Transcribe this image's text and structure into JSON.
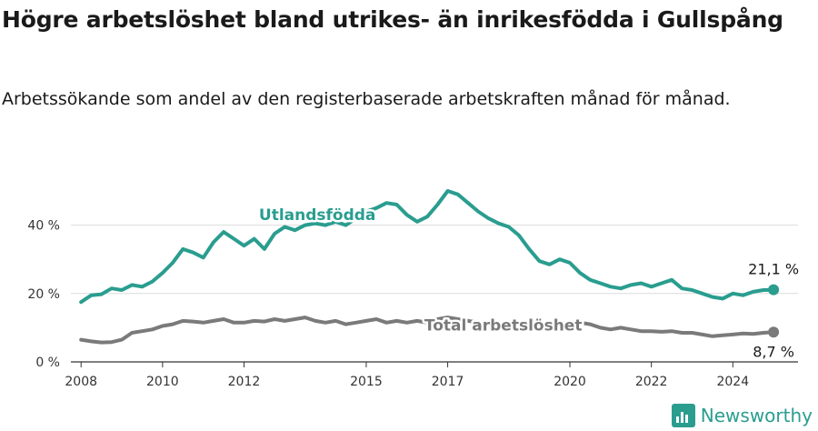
{
  "title": "Högre arbetslöshet bland utrikes- än inrikesfödda i Gullspång",
  "subtitle": "Arbetssökande som andel av den registerbaserade arbetskraften månad för månad.",
  "brand": {
    "name": "Newsworthy",
    "icon": "bar-chart-icon"
  },
  "chart_data": {
    "type": "line",
    "x_ticks": [
      2008,
      2010,
      2012,
      2015,
      2017,
      2020,
      2022,
      2024
    ],
    "y_ticks": [
      0,
      20,
      40
    ],
    "y_tick_labels": [
      "0 %",
      "20 %",
      "40 %"
    ],
    "xlim": [
      2007.75,
      2025.6
    ],
    "ylim": [
      0,
      50
    ],
    "grid": "horizontal",
    "colors": {
      "utlandsfodda": "#2a9d8f",
      "total": "#7a7a7a"
    },
    "series": [
      {
        "name": "Utlandsfödda",
        "color": "#2a9d8f",
        "end_label": "21,1 %",
        "points": [
          [
            2008.0,
            17.5
          ],
          [
            2008.25,
            19.5
          ],
          [
            2008.5,
            19.8
          ],
          [
            2008.75,
            21.5
          ],
          [
            2009.0,
            21.0
          ],
          [
            2009.25,
            22.5
          ],
          [
            2009.5,
            22.0
          ],
          [
            2009.75,
            23.5
          ],
          [
            2010.0,
            26.0
          ],
          [
            2010.25,
            29.0
          ],
          [
            2010.5,
            33.0
          ],
          [
            2010.75,
            32.0
          ],
          [
            2011.0,
            30.5
          ],
          [
            2011.25,
            35.0
          ],
          [
            2011.5,
            38.0
          ],
          [
            2011.75,
            36.0
          ],
          [
            2012.0,
            34.0
          ],
          [
            2012.25,
            36.0
          ],
          [
            2012.5,
            33.0
          ],
          [
            2012.75,
            37.5
          ],
          [
            2013.0,
            39.5
          ],
          [
            2013.25,
            38.5
          ],
          [
            2013.5,
            40.0
          ],
          [
            2013.75,
            40.5
          ],
          [
            2014.0,
            40.0
          ],
          [
            2014.25,
            41.0
          ],
          [
            2014.5,
            40.0
          ],
          [
            2014.75,
            42.0
          ],
          [
            2015.0,
            44.0
          ],
          [
            2015.25,
            45.0
          ],
          [
            2015.5,
            46.5
          ],
          [
            2015.75,
            46.0
          ],
          [
            2016.0,
            43.0
          ],
          [
            2016.25,
            41.0
          ],
          [
            2016.5,
            42.5
          ],
          [
            2016.75,
            46.0
          ],
          [
            2017.0,
            50.0
          ],
          [
            2017.25,
            49.0
          ],
          [
            2017.5,
            46.5
          ],
          [
            2017.75,
            44.0
          ],
          [
            2018.0,
            42.0
          ],
          [
            2018.25,
            40.5
          ],
          [
            2018.5,
            39.5
          ],
          [
            2018.75,
            37.0
          ],
          [
            2019.0,
            33.0
          ],
          [
            2019.25,
            29.5
          ],
          [
            2019.5,
            28.5
          ],
          [
            2019.75,
            30.0
          ],
          [
            2020.0,
            29.0
          ],
          [
            2020.25,
            26.0
          ],
          [
            2020.5,
            24.0
          ],
          [
            2020.75,
            23.0
          ],
          [
            2021.0,
            22.0
          ],
          [
            2021.25,
            21.5
          ],
          [
            2021.5,
            22.5
          ],
          [
            2021.75,
            23.0
          ],
          [
            2022.0,
            22.0
          ],
          [
            2022.25,
            23.0
          ],
          [
            2022.5,
            24.0
          ],
          [
            2022.75,
            21.5
          ],
          [
            2023.0,
            21.0
          ],
          [
            2023.25,
            20.0
          ],
          [
            2023.5,
            19.0
          ],
          [
            2023.75,
            18.5
          ],
          [
            2024.0,
            20.0
          ],
          [
            2024.25,
            19.5
          ],
          [
            2024.5,
            20.5
          ],
          [
            2024.75,
            21.0
          ],
          [
            2025.0,
            21.1
          ]
        ]
      },
      {
        "name": "Total arbetslöshet",
        "color": "#7a7a7a",
        "end_label": "8,7 %",
        "points": [
          [
            2008.0,
            6.5
          ],
          [
            2008.25,
            6.0
          ],
          [
            2008.5,
            5.7
          ],
          [
            2008.75,
            5.8
          ],
          [
            2009.0,
            6.5
          ],
          [
            2009.25,
            8.5
          ],
          [
            2009.5,
            9.0
          ],
          [
            2009.75,
            9.5
          ],
          [
            2010.0,
            10.5
          ],
          [
            2010.25,
            11.0
          ],
          [
            2010.5,
            12.0
          ],
          [
            2010.75,
            11.8
          ],
          [
            2011.0,
            11.5
          ],
          [
            2011.25,
            12.0
          ],
          [
            2011.5,
            12.5
          ],
          [
            2011.75,
            11.5
          ],
          [
            2012.0,
            11.5
          ],
          [
            2012.25,
            12.0
          ],
          [
            2012.5,
            11.8
          ],
          [
            2012.75,
            12.5
          ],
          [
            2013.0,
            12.0
          ],
          [
            2013.25,
            12.5
          ],
          [
            2013.5,
            13.0
          ],
          [
            2013.75,
            12.0
          ],
          [
            2014.0,
            11.5
          ],
          [
            2014.25,
            12.0
          ],
          [
            2014.5,
            11.0
          ],
          [
            2014.75,
            11.5
          ],
          [
            2015.0,
            12.0
          ],
          [
            2015.25,
            12.5
          ],
          [
            2015.5,
            11.5
          ],
          [
            2015.75,
            12.0
          ],
          [
            2016.0,
            11.5
          ],
          [
            2016.25,
            12.0
          ],
          [
            2016.5,
            11.5
          ],
          [
            2016.75,
            12.5
          ],
          [
            2017.0,
            13.0
          ],
          [
            2017.25,
            12.5
          ],
          [
            2017.5,
            12.0
          ],
          [
            2017.75,
            11.5
          ],
          [
            2018.0,
            11.0
          ],
          [
            2018.25,
            10.5
          ],
          [
            2018.5,
            10.5
          ],
          [
            2018.75,
            10.0
          ],
          [
            2019.0,
            10.0
          ],
          [
            2019.25,
            9.8
          ],
          [
            2019.5,
            10.0
          ],
          [
            2019.75,
            10.5
          ],
          [
            2020.0,
            11.0
          ],
          [
            2020.25,
            11.5
          ],
          [
            2020.5,
            11.0
          ],
          [
            2020.75,
            10.0
          ],
          [
            2021.0,
            9.5
          ],
          [
            2021.25,
            10.0
          ],
          [
            2021.5,
            9.5
          ],
          [
            2021.75,
            9.0
          ],
          [
            2022.0,
            9.0
          ],
          [
            2022.25,
            8.8
          ],
          [
            2022.5,
            9.0
          ],
          [
            2022.75,
            8.5
          ],
          [
            2023.0,
            8.5
          ],
          [
            2023.25,
            8.0
          ],
          [
            2023.5,
            7.5
          ],
          [
            2023.75,
            7.8
          ],
          [
            2024.0,
            8.0
          ],
          [
            2024.25,
            8.3
          ],
          [
            2024.5,
            8.2
          ],
          [
            2024.75,
            8.5
          ],
          [
            2025.0,
            8.7
          ]
        ]
      }
    ]
  }
}
